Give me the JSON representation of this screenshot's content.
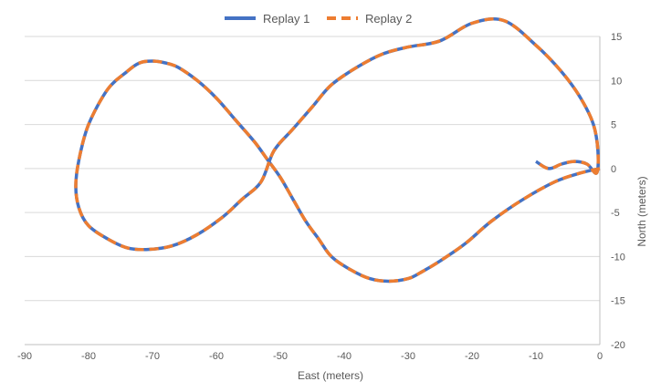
{
  "chart_data": {
    "type": "line",
    "title": "",
    "xlabel": "East (meters)",
    "ylabel": "North (meters)",
    "xlim": [
      -90,
      0
    ],
    "ylim": [
      -20,
      15
    ],
    "xticks": [
      -90,
      -80,
      -70,
      -60,
      -50,
      -40,
      -30,
      -20,
      -10,
      0
    ],
    "yticks": [
      -20,
      -15,
      -10,
      -5,
      0,
      5,
      10,
      15
    ],
    "grid": "horizontal",
    "legend": "top-center",
    "y_axis_position": "right",
    "series": [
      {
        "name": "Replay 1",
        "style": "solid",
        "color": "#4472C4",
        "x": [
          0,
          -3,
          -7,
          -12,
          -17,
          -21,
          -25,
          -28,
          -30,
          -33,
          -36,
          -39,
          -42,
          -44,
          -46,
          -48,
          -50,
          -52,
          -54,
          -57,
          -60,
          -63,
          -66,
          -68,
          -70,
          -72,
          -74,
          -77,
          -80,
          -81.5,
          -82,
          -81.5,
          -80,
          -77,
          -74,
          -71,
          -67,
          -63,
          -59,
          -56,
          -53,
          -51,
          -48,
          -45,
          -42,
          -38,
          -34,
          -30,
          -25,
          -20,
          -15,
          -10,
          -6,
          -3,
          -1,
          -0.3,
          -0.5,
          -2,
          -4,
          -6,
          -8,
          -10
        ],
        "y": [
          0,
          -0.5,
          -1.5,
          -3.5,
          -6,
          -8.5,
          -10.5,
          -11.8,
          -12.5,
          -12.8,
          -12.5,
          -11.5,
          -10,
          -8,
          -6,
          -3.5,
          -1,
          1,
          3,
          5.5,
          8,
          10,
          11.5,
          12,
          12.2,
          12,
          11,
          9,
          5,
          1,
          -2,
          -4.5,
          -6.5,
          -8,
          -9,
          -9.2,
          -8.8,
          -7.5,
          -5.5,
          -3.5,
          -1.5,
          2,
          4.5,
          7,
          9.5,
          11.5,
          13,
          13.8,
          14.5,
          16.5,
          16.8,
          14,
          11,
          8,
          5,
          2,
          -0.5,
          0.5,
          0.8,
          0.5,
          0,
          0.8
        ]
      },
      {
        "name": "Replay 2",
        "style": "dashed",
        "color": "#ED7D31",
        "x": [
          0,
          -3,
          -7,
          -12,
          -17,
          -21,
          -25,
          -28,
          -30,
          -33,
          -36,
          -39,
          -42,
          -44,
          -46,
          -48,
          -50,
          -52,
          -54,
          -57,
          -60,
          -63,
          -66,
          -68,
          -70,
          -72,
          -74,
          -77,
          -80,
          -81.5,
          -82,
          -81.5,
          -80,
          -77,
          -74,
          -71,
          -67,
          -63,
          -59,
          -56,
          -53,
          -51,
          -48,
          -45,
          -42,
          -38,
          -34,
          -30,
          -25,
          -20,
          -15,
          -10,
          -6,
          -3,
          -1,
          -0.3,
          -0.5,
          -2,
          -4,
          -6,
          -8,
          -10
        ],
        "y": [
          0,
          -0.5,
          -1.5,
          -3.5,
          -6,
          -8.5,
          -10.5,
          -11.8,
          -12.5,
          -12.8,
          -12.5,
          -11.5,
          -10,
          -8,
          -6,
          -3.5,
          -1,
          1,
          3,
          5.5,
          8,
          10,
          11.5,
          12,
          12.2,
          12,
          11,
          9,
          5,
          1,
          -2,
          -4.5,
          -6.5,
          -8,
          -9,
          -9.2,
          -8.8,
          -7.5,
          -5.5,
          -3.5,
          -1.5,
          2,
          4.5,
          7,
          9.5,
          11.5,
          13,
          13.8,
          14.5,
          16.5,
          16.8,
          14,
          11,
          8,
          5,
          2,
          -0.5,
          0.5,
          0.8,
          0.5,
          0,
          0.8
        ]
      }
    ]
  }
}
